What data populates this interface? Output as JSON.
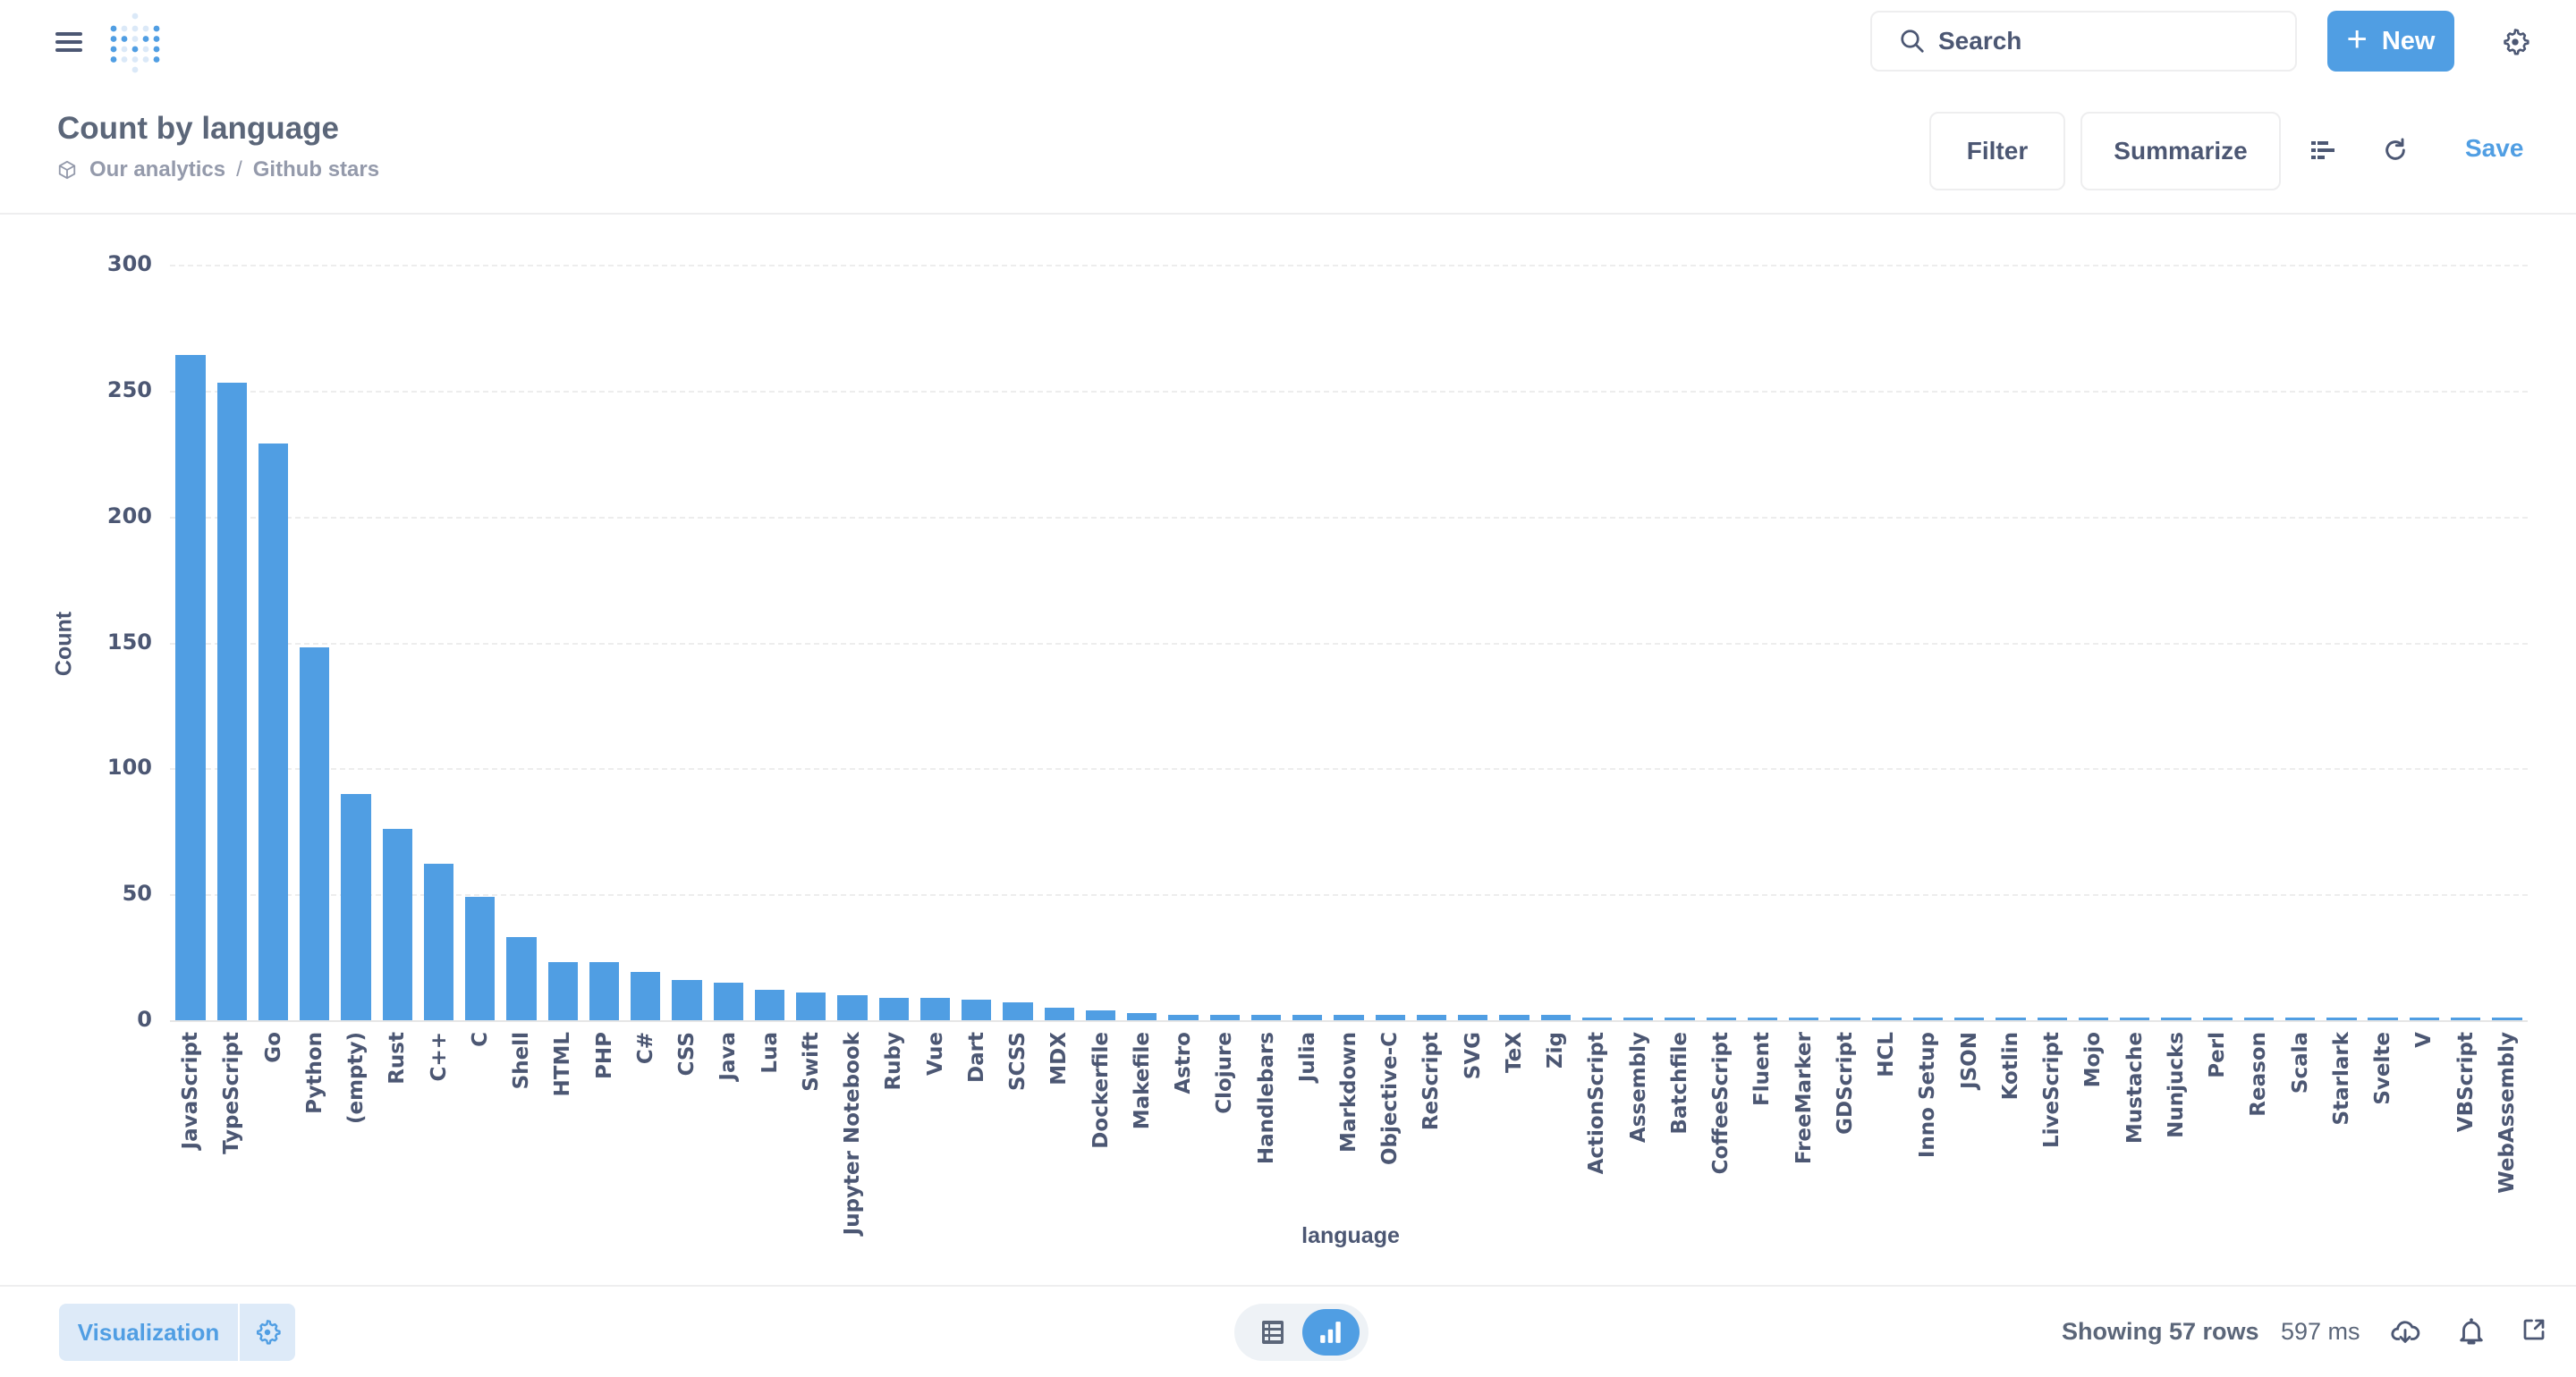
{
  "nav": {
    "search_placeholder": "Search",
    "new_label": "New",
    "new_icon": "plus-icon",
    "settings_icon": "gear-icon",
    "menu_icon": "hamburger-icon",
    "logo": "metabase-logo"
  },
  "header": {
    "title": "Count by language",
    "breadcrumb": [
      "Our analytics",
      "Github stars"
    ],
    "breadcrumb_separator": "/",
    "filter_label": "Filter",
    "summarize_label": "Summarize",
    "save_label": "Save"
  },
  "colors": {
    "accent": "#509ee3",
    "text": "#4c5773",
    "bar": "#509ee3"
  },
  "chart_data": {
    "type": "bar",
    "title": "Count by language",
    "xlabel": "language",
    "ylabel": "Count",
    "ylim": [
      0,
      300
    ],
    "yticks": [
      0,
      50,
      100,
      150,
      200,
      250,
      300
    ],
    "grid": true,
    "legend": false,
    "categories": [
      "JavaScript",
      "TypeScript",
      "Go",
      "Python",
      "(empty)",
      "Rust",
      "C++",
      "C",
      "Shell",
      "HTML",
      "PHP",
      "C#",
      "CSS",
      "Java",
      "Lua",
      "Swift",
      "Jupyter Notebook",
      "Ruby",
      "Vue",
      "Dart",
      "SCSS",
      "MDX",
      "Dockerfile",
      "Makefile",
      "Astro",
      "Clojure",
      "Handlebars",
      "Julia",
      "Markdown",
      "Objective-C",
      "ReScript",
      "SVG",
      "TeX",
      "Zig",
      "ActionScript",
      "Assembly",
      "Batchfile",
      "CoffeeScript",
      "Fluent",
      "FreeMarker",
      "GDScript",
      "HCL",
      "Inno Setup",
      "JSON",
      "Kotlin",
      "LiveScript",
      "Mojo",
      "Mustache",
      "Nunjucks",
      "Perl",
      "Reason",
      "Scala",
      "Starlark",
      "Svelte",
      "V",
      "VBScript",
      "WebAssembly"
    ],
    "values": [
      264,
      253,
      229,
      148,
      90,
      76,
      62,
      49,
      33,
      23,
      23,
      19,
      16,
      15,
      12,
      11,
      10,
      9,
      9,
      8,
      7,
      5,
      4,
      3,
      2,
      2,
      2,
      2,
      2,
      2,
      2,
      2,
      2,
      2,
      1,
      1,
      1,
      1,
      1,
      1,
      1,
      1,
      1,
      1,
      1,
      1,
      1,
      1,
      1,
      1,
      1,
      1,
      1,
      1,
      1,
      1,
      1
    ]
  },
  "footer": {
    "visualization_label": "Visualization",
    "rows_text": "Showing 57 rows",
    "time_text": "597 ms"
  }
}
